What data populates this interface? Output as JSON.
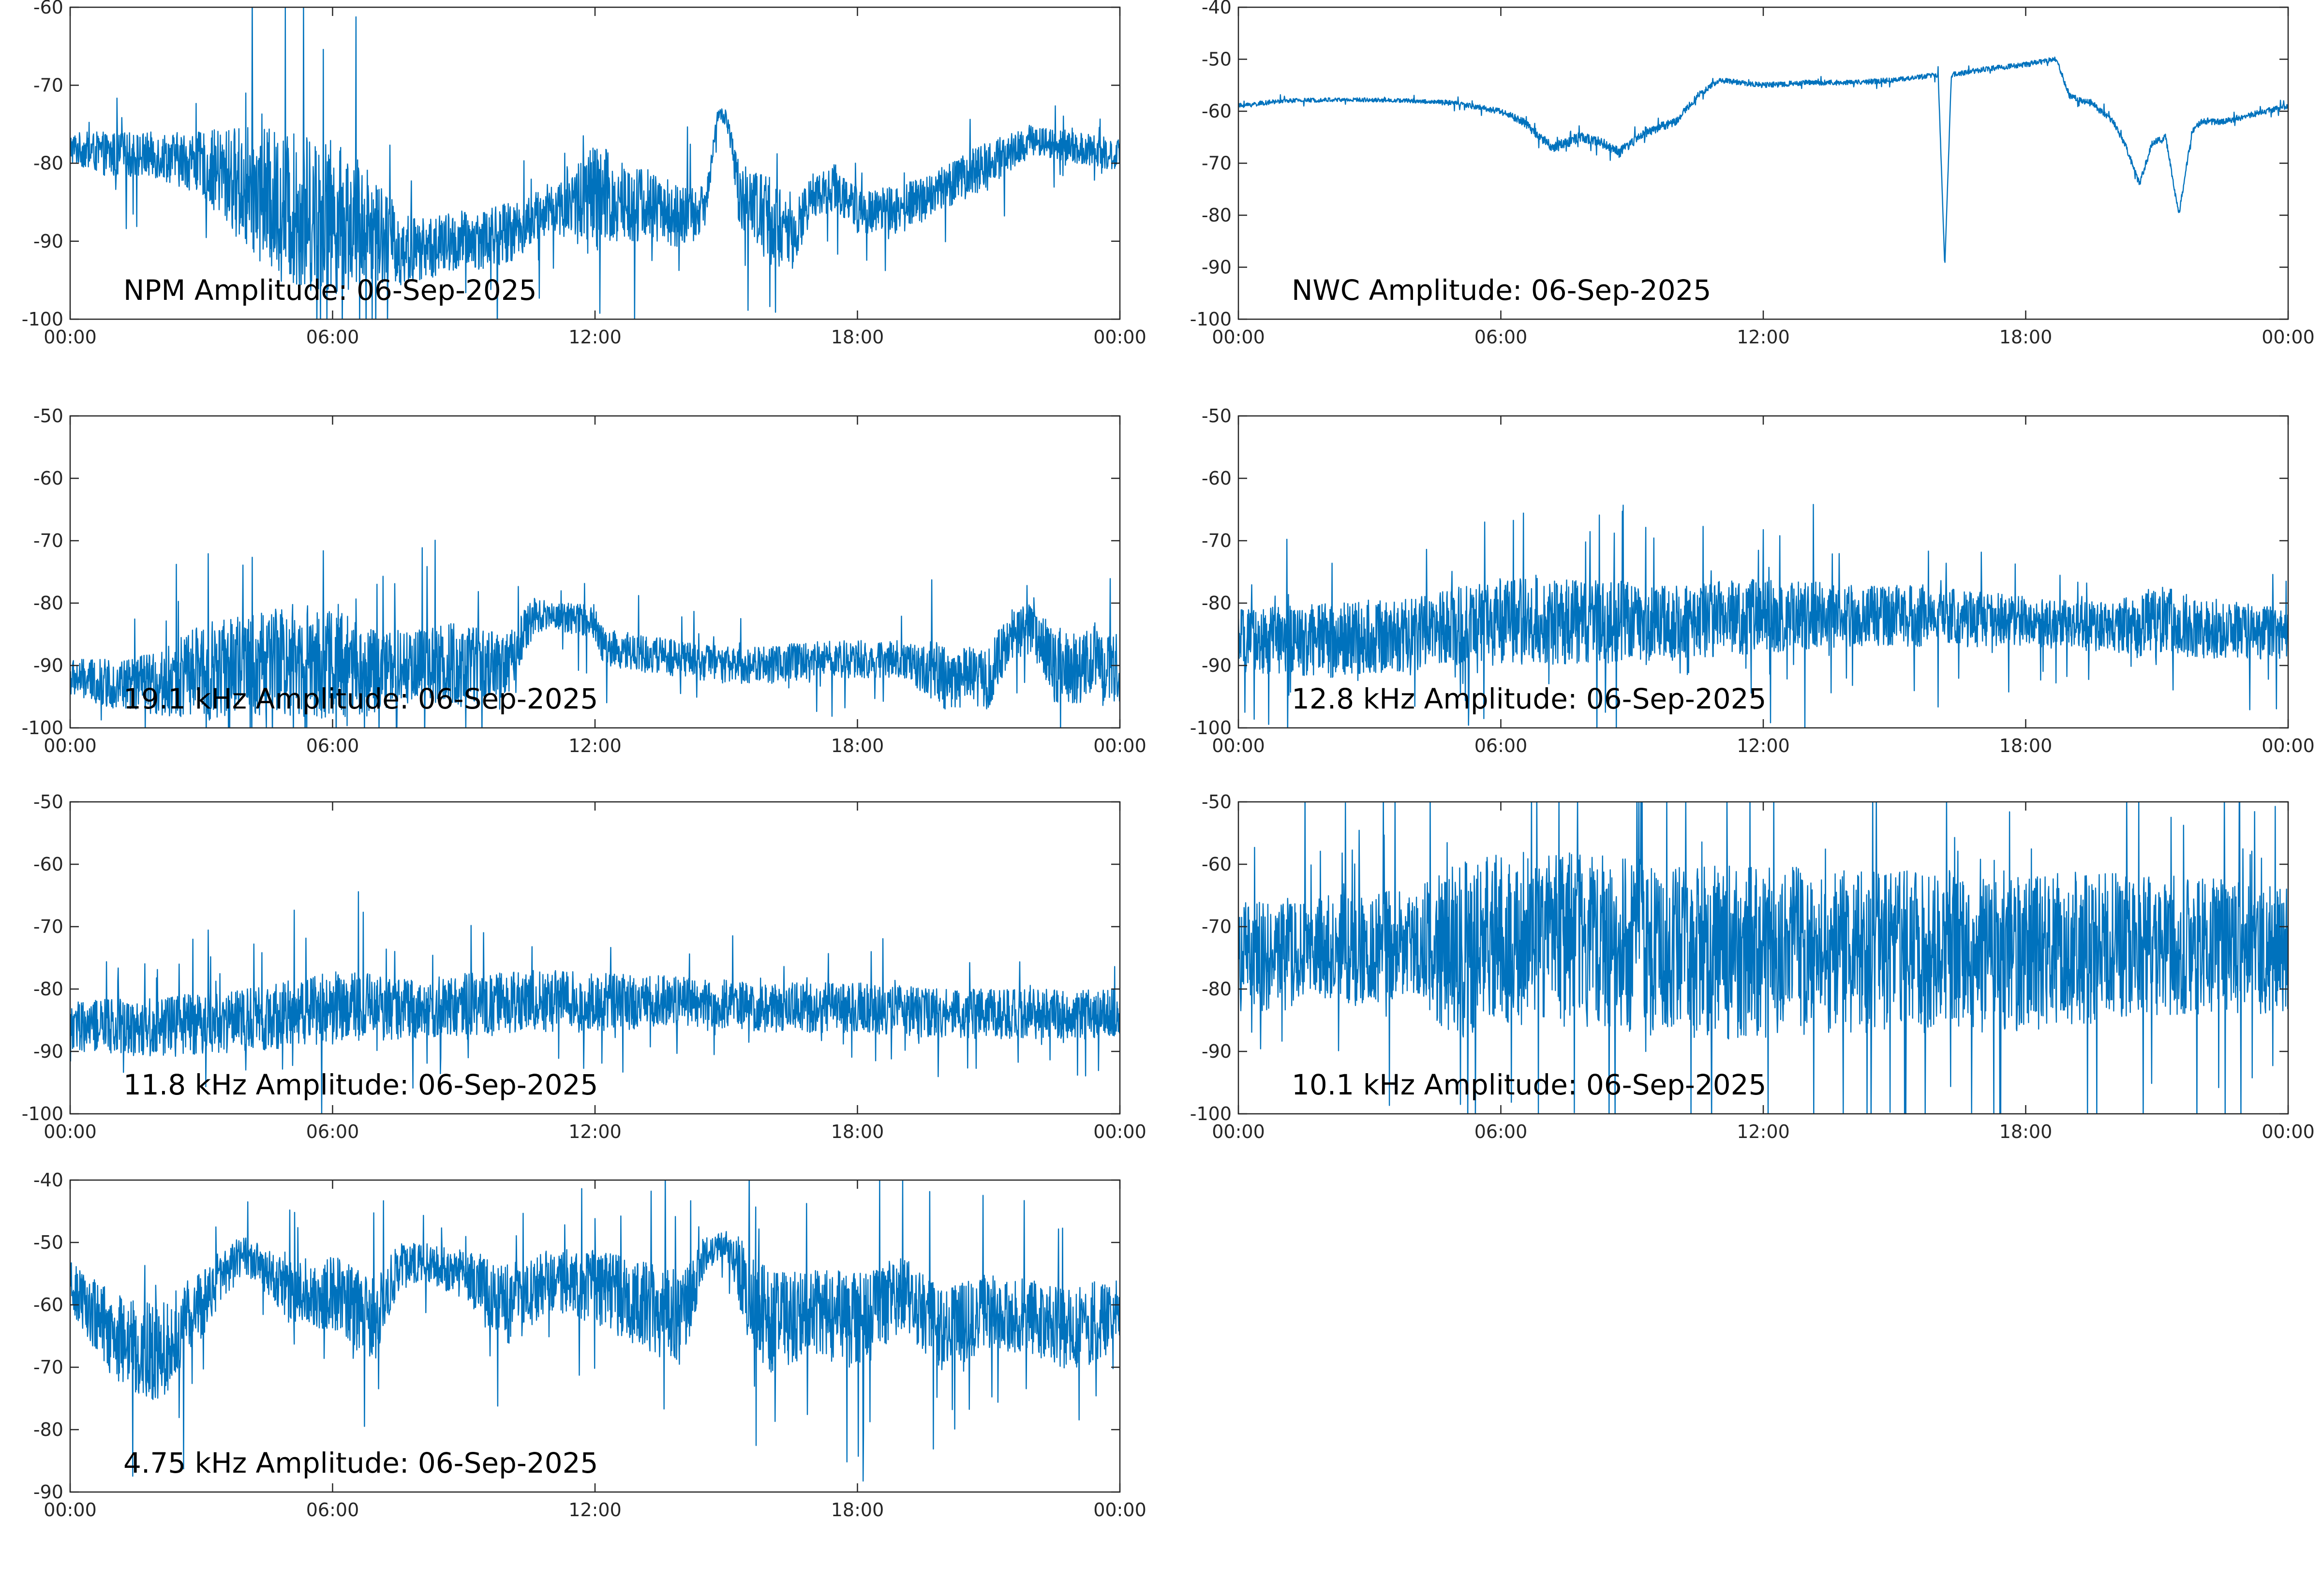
{
  "figure": {
    "line_color": "#0072BD",
    "x_tick_labels": [
      "00:00",
      "06:00",
      "12:00",
      "18:00",
      "00:00"
    ]
  },
  "chart_data": [
    {
      "type": "line",
      "title": "NPM Amplitude: 06-Sep-2025",
      "xlabel": "",
      "ylabel": "",
      "xlim": [
        0,
        24
      ],
      "ylim": [
        -100,
        -60
      ],
      "x_ticks": [
        0,
        6,
        12,
        18,
        24
      ],
      "y_ticks": [
        -100,
        -90,
        -80,
        -70,
        -60
      ],
      "y_tick_labels": [
        "-100",
        "-90",
        "-80",
        "-70",
        "-60"
      ],
      "series": [
        {
          "x": [
            0,
            1,
            2,
            3,
            4,
            5,
            6,
            7,
            7.5,
            8,
            9,
            10,
            11,
            11.5,
            12,
            12.5,
            13,
            14,
            14.5,
            14.8,
            15,
            15.3,
            16,
            16.5,
            17,
            17.5,
            18,
            19,
            20,
            21,
            22,
            23,
            24
          ],
          "values": [
            -78,
            -79,
            -79,
            -80,
            -83,
            -86,
            -87,
            -88,
            -91,
            -91,
            -90,
            -89,
            -86,
            -85,
            -85,
            -85,
            -85,
            -87,
            -86,
            -74,
            -74,
            -84,
            -87,
            -90,
            -84,
            -83,
            -86,
            -86,
            -83,
            -80,
            -77,
            -78,
            -79
          ],
          "spread": [
            2,
            3,
            3,
            4,
            8,
            10,
            10,
            7,
            5,
            4,
            4,
            4,
            3,
            5,
            8,
            6,
            5,
            4,
            3,
            1,
            1,
            4,
            6,
            4,
            3,
            3,
            3,
            3,
            3,
            3,
            2,
            2,
            2
          ]
        }
      ]
    },
    {
      "type": "line",
      "title": "NWC Amplitude: 06-Sep-2025",
      "xlabel": "",
      "ylabel": "",
      "xlim": [
        0,
        24
      ],
      "ylim": [
        -100,
        -40
      ],
      "x_ticks": [
        0,
        6,
        12,
        18,
        24
      ],
      "y_ticks": [
        -100,
        -90,
        -80,
        -70,
        -60,
        -50,
        -40
      ],
      "y_tick_labels": [
        "-100",
        "-90",
        "-80",
        "-70",
        "-60",
        "-50",
        "-40"
      ],
      "series": [
        {
          "x": [
            0,
            1,
            2,
            3,
            4,
            5,
            6,
            6.5,
            7.2,
            7.8,
            8.3,
            8.7,
            9.3,
            10,
            10.5,
            11,
            12,
            13,
            14,
            15,
            16,
            16.15,
            16.3,
            17,
            18,
            18.7,
            19,
            19.5,
            20,
            20.3,
            20.6,
            20.9,
            21.2,
            21.5,
            21.8,
            22,
            22.5,
            23,
            24
          ],
          "values": [
            -59,
            -58,
            -57.8,
            -57.8,
            -58,
            -58.5,
            -60,
            -62,
            -67,
            -65,
            -66,
            -68,
            -64,
            -62,
            -57,
            -54,
            -55,
            -54.5,
            -54.5,
            -54,
            -53,
            -90,
            -53,
            -52,
            -51,
            -50,
            -57,
            -58.5,
            -62,
            -67,
            -74,
            -66,
            -65,
            -80,
            -64,
            -62,
            -62,
            -61,
            -59
          ],
          "spread": [
            0.5,
            0.4,
            0.4,
            0.4,
            0.4,
            0.5,
            0.6,
            0.8,
            1,
            1,
            1,
            1,
            1,
            0.8,
            0.6,
            0.5,
            0.5,
            0.5,
            0.5,
            0.5,
            0.5,
            0,
            0.5,
            0.5,
            0.5,
            0.5,
            0.6,
            0.6,
            0.6,
            0.6,
            0.6,
            0.6,
            0.6,
            0.6,
            0.6,
            0.6,
            0.6,
            0.6,
            0.5
          ]
        }
      ]
    },
    {
      "type": "line",
      "title": "19.1 kHz Amplitude: 06-Sep-2025",
      "xlabel": "",
      "ylabel": "",
      "xlim": [
        0,
        24
      ],
      "ylim": [
        -100,
        -50
      ],
      "x_ticks": [
        0,
        6,
        12,
        18,
        24
      ],
      "y_ticks": [
        -100,
        -90,
        -80,
        -70,
        -60,
        -50
      ],
      "y_tick_labels": [
        "-100",
        "-90",
        "-80",
        "-70",
        "-60",
        "-50"
      ],
      "series": [
        {
          "x": [
            0,
            1,
            2,
            3,
            4,
            5,
            6,
            7,
            8,
            9,
            10,
            10.6,
            11,
            12,
            12.2,
            13,
            14,
            15,
            16,
            17,
            18,
            19,
            20,
            21,
            21.5,
            22,
            22.5,
            23,
            24
          ],
          "values": [
            -92,
            -93,
            -93,
            -91,
            -90,
            -89,
            -90,
            -91,
            -90,
            -90,
            -90,
            -82,
            -82,
            -83,
            -87,
            -88,
            -89,
            -90,
            -90,
            -89,
            -89,
            -89,
            -92,
            -92,
            -85,
            -84,
            -90,
            -90,
            -91
          ],
          "spread": [
            3,
            4,
            5,
            8,
            8,
            9,
            9,
            7,
            6,
            7,
            5,
            3,
            2,
            3,
            3,
            3,
            3,
            3,
            3,
            3,
            3,
            3,
            5,
            5,
            4,
            4,
            6,
            6,
            6
          ]
        }
      ]
    },
    {
      "type": "line",
      "title": "12.8 kHz Amplitude: 06-Sep-2025",
      "xlabel": "",
      "ylabel": "",
      "xlim": [
        0,
        24
      ],
      "ylim": [
        -100,
        -50
      ],
      "x_ticks": [
        0,
        6,
        12,
        18,
        24
      ],
      "y_ticks": [
        -100,
        -90,
        -80,
        -70,
        -60,
        -50
      ],
      "y_tick_labels": [
        "-100",
        "-90",
        "-80",
        "-70",
        "-60",
        "-50"
      ],
      "series": [
        {
          "x": [
            0,
            2,
            4,
            6,
            8,
            10,
            12,
            14,
            16,
            18,
            20,
            21,
            22,
            24
          ],
          "values": [
            -86,
            -86,
            -85,
            -83,
            -83,
            -83,
            -82,
            -82,
            -82,
            -83,
            -84,
            -83,
            -84,
            -85
          ],
          "spread": [
            5,
            6,
            6,
            7,
            7,
            6,
            6,
            5,
            5,
            4,
            4,
            6,
            5,
            4
          ]
        }
      ]
    },
    {
      "type": "line",
      "title": "11.8 kHz Amplitude: 06-Sep-2025",
      "xlabel": "",
      "ylabel": "",
      "xlim": [
        0,
        24
      ],
      "ylim": [
        -100,
        -50
      ],
      "x_ticks": [
        0,
        6,
        12,
        18,
        24
      ],
      "y_ticks": [
        -100,
        -90,
        -80,
        -70,
        -60,
        -50
      ],
      "y_tick_labels": [
        "-100",
        "-90",
        "-80",
        "-70",
        "-60",
        "-50"
      ],
      "series": [
        {
          "x": [
            0,
            2,
            4,
            6,
            8,
            10,
            12,
            14,
            16,
            18,
            20,
            22,
            24
          ],
          "values": [
            -86,
            -86,
            -85,
            -83,
            -83,
            -82,
            -82,
            -82,
            -83,
            -83,
            -84,
            -84,
            -84
          ],
          "spread": [
            4,
            5,
            5,
            6,
            5,
            5,
            5,
            4,
            4,
            4,
            4,
            4,
            4
          ]
        }
      ]
    },
    {
      "type": "line",
      "title": "10.1 kHz Amplitude: 06-Sep-2025",
      "xlabel": "",
      "ylabel": "",
      "xlim": [
        0,
        24
      ],
      "ylim": [
        -100,
        -50
      ],
      "x_ticks": [
        0,
        6,
        12,
        18,
        24
      ],
      "y_ticks": [
        -100,
        -90,
        -80,
        -70,
        -60,
        -50
      ],
      "y_tick_labels": [
        "-100",
        "-90",
        "-80",
        "-70",
        "-60",
        "-50"
      ],
      "series": [
        {
          "x": [
            0,
            2,
            4,
            5,
            6,
            8,
            10,
            12,
            14,
            16,
            18,
            20,
            22,
            24
          ],
          "values": [
            -75,
            -74,
            -73,
            -74,
            -72,
            -72,
            -74,
            -74,
            -74,
            -74,
            -74,
            -73,
            -73,
            -74
          ],
          "spread": [
            9,
            9,
            9,
            14,
            14,
            14,
            14,
            14,
            13,
            13,
            13,
            12,
            11,
            10
          ]
        }
      ]
    },
    {
      "type": "line",
      "title": "4.75 kHz Amplitude: 06-Sep-2025",
      "xlabel": "",
      "ylabel": "",
      "xlim": [
        0,
        24
      ],
      "ylim": [
        -90,
        -40
      ],
      "x_ticks": [
        0,
        6,
        12,
        18,
        24
      ],
      "y_ticks": [
        -90,
        -80,
        -70,
        -60,
        -50,
        -40
      ],
      "y_tick_labels": [
        "-90",
        "-80",
        "-70",
        "-60",
        "-50",
        "-40"
      ],
      "series": [
        {
          "x": [
            0,
            1,
            2,
            3,
            3.5,
            4,
            5,
            6,
            7,
            7.5,
            8,
            9,
            10,
            11,
            12,
            13,
            14,
            14.5,
            15,
            15.5,
            16,
            17,
            18,
            19,
            20,
            21,
            22,
            23,
            24
          ],
          "values": [
            -57,
            -65,
            -68,
            -60,
            -55,
            -52,
            -58,
            -58,
            -63,
            -54,
            -53,
            -55,
            -60,
            -56,
            -57,
            -60,
            -62,
            -52,
            -50,
            -58,
            -63,
            -61,
            -63,
            -58,
            -64,
            -61,
            -62,
            -64,
            -61
          ],
          "spread": [
            4,
            7,
            8,
            6,
            4,
            3,
            5,
            6,
            7,
            4,
            3,
            4,
            7,
            5,
            6,
            7,
            8,
            3,
            2,
            8,
            8,
            7,
            8,
            6,
            7,
            6,
            6,
            7,
            6
          ]
        }
      ]
    }
  ]
}
